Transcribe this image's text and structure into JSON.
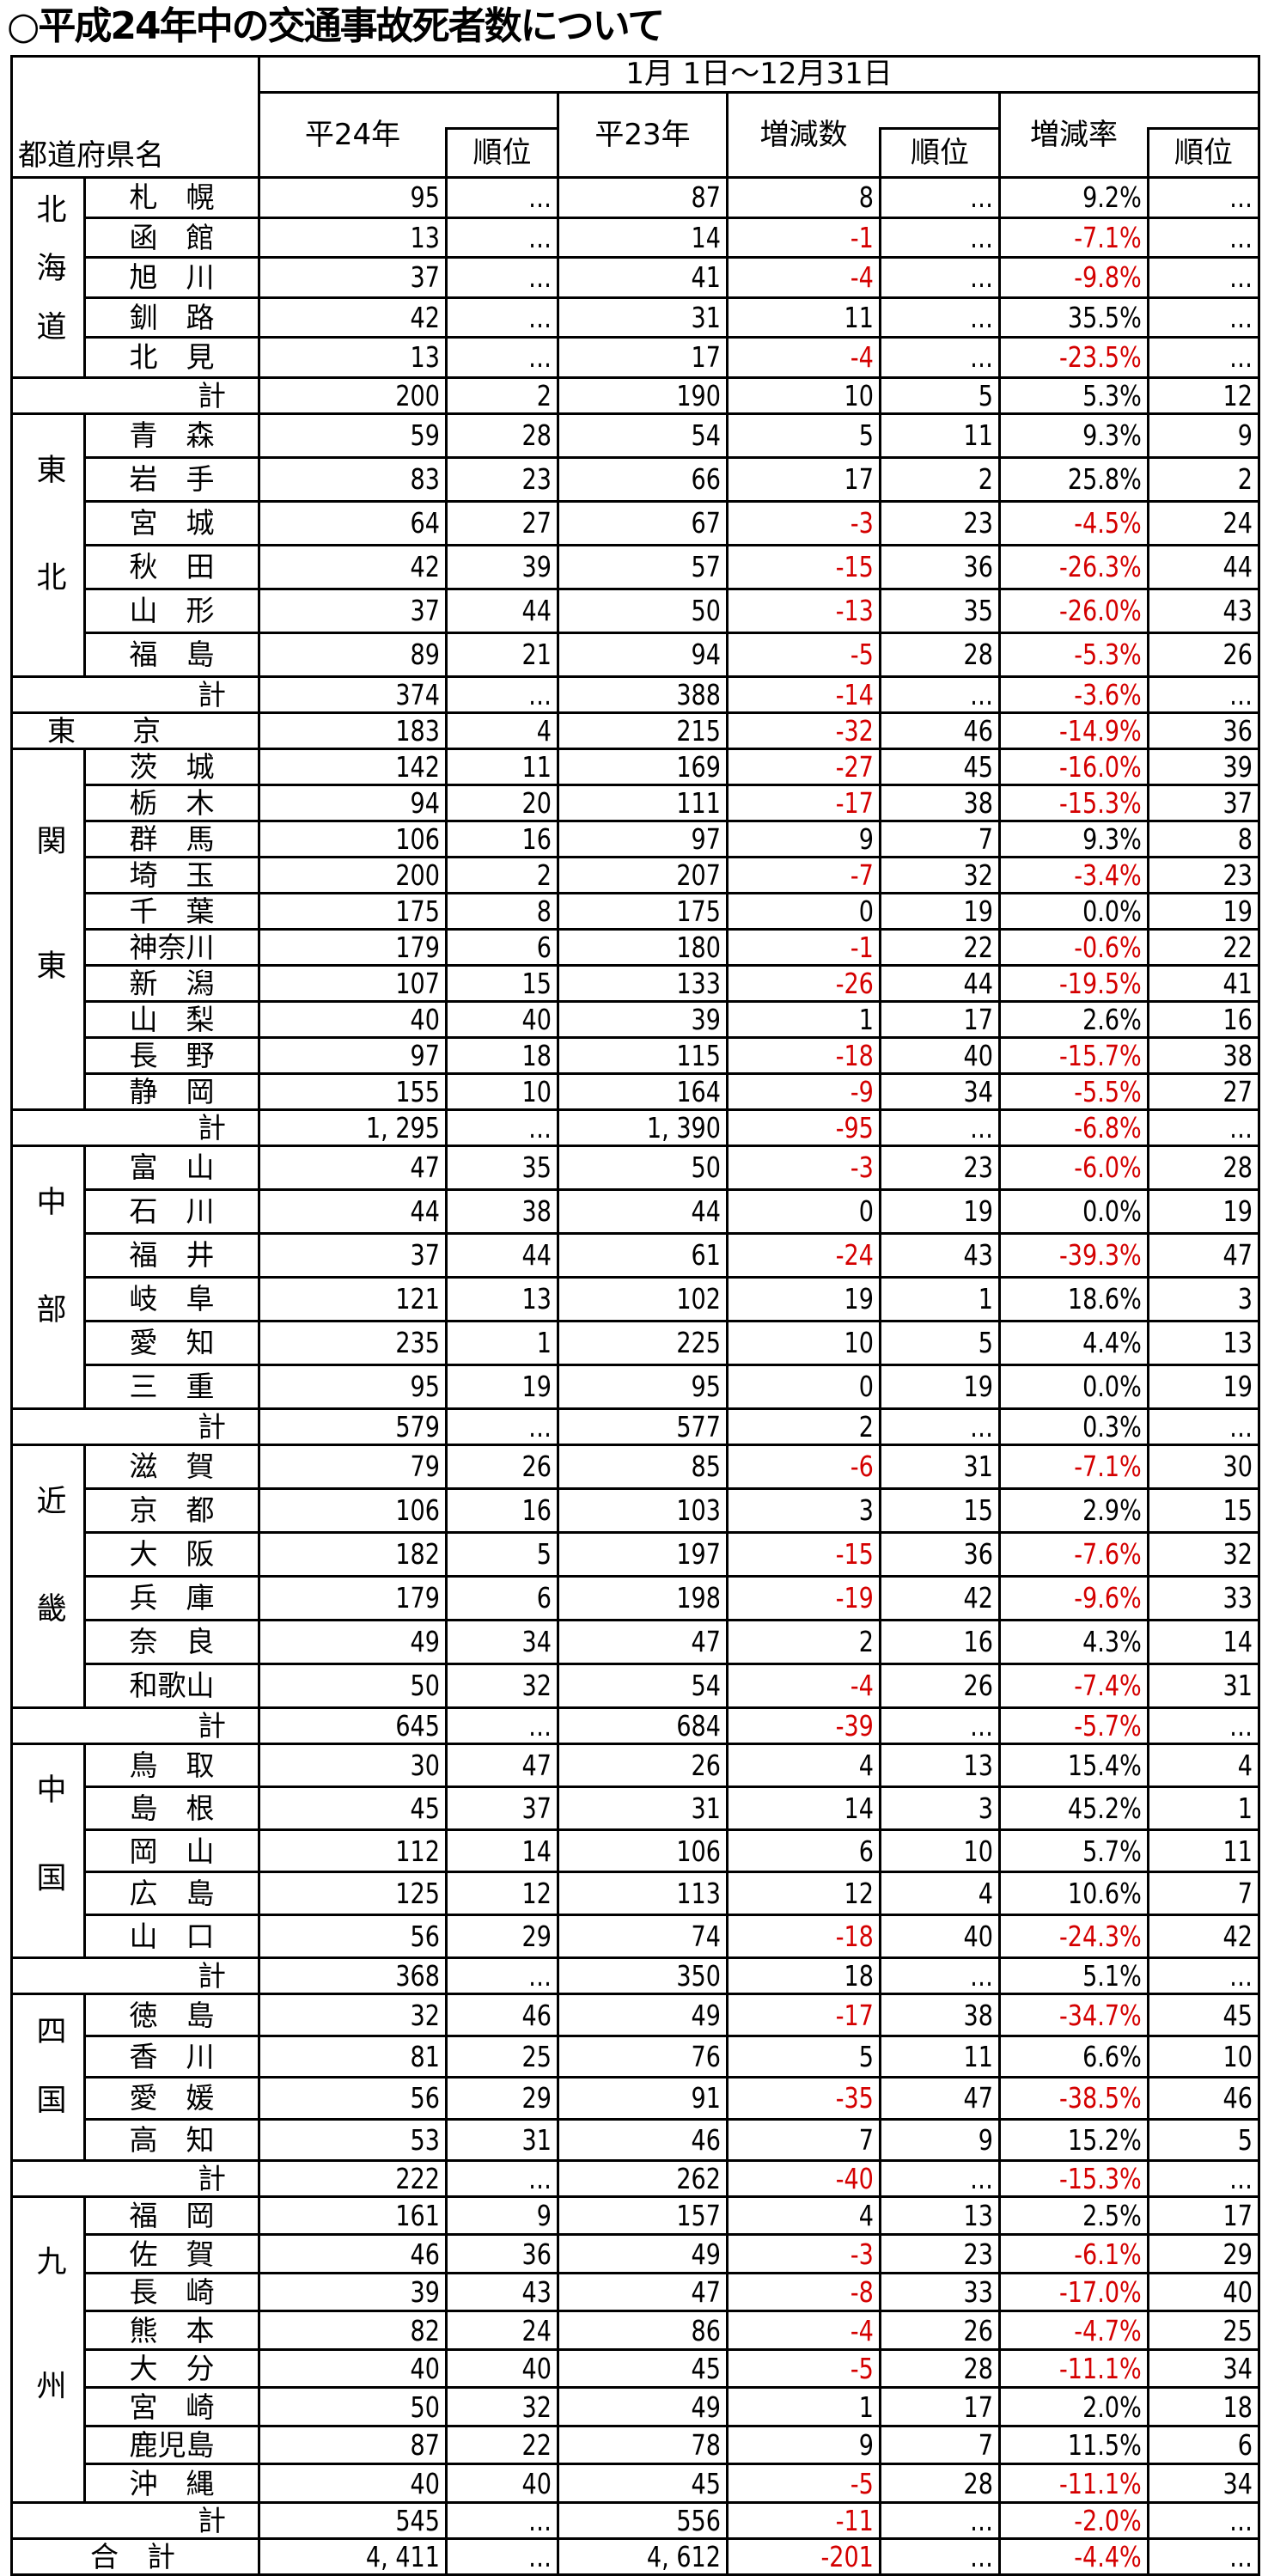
{
  "title": "○平成24年中の交通事故死者数について",
  "header": {
    "period": "1月 1日～12月31日",
    "prefecture": "都道府県名",
    "h24": "平24年",
    "h23": "平23年",
    "diff": "増減数",
    "rate": "増減率",
    "rank": "順位"
  },
  "colors": {
    "negative": "#d40000"
  },
  "total_label": "計",
  "regions": [
    {
      "name": "北海道",
      "rows": [
        [
          "札　幌",
          "95",
          "…",
          "87",
          "8",
          "…",
          "9.2%",
          "…"
        ],
        [
          "函　館",
          "13",
          "…",
          "14",
          "-1",
          "…",
          "-7.1%",
          "…"
        ],
        [
          "旭　川",
          "37",
          "…",
          "41",
          "-4",
          "…",
          "-9.8%",
          "…"
        ],
        [
          "釧　路",
          "42",
          "…",
          "31",
          "11",
          "…",
          "35.5%",
          "…"
        ],
        [
          "北　見",
          "13",
          "…",
          "17",
          "-4",
          "…",
          "-23.5%",
          "…"
        ]
      ],
      "total": [
        "計",
        "200",
        "2",
        "190",
        "10",
        "5",
        "5.3%",
        "12"
      ]
    },
    {
      "name": "東北",
      "rows": [
        [
          "青　森",
          "59",
          "28",
          "54",
          "5",
          "11",
          "9.3%",
          "9"
        ],
        [
          "岩　手",
          "83",
          "23",
          "66",
          "17",
          "2",
          "25.8%",
          "2"
        ],
        [
          "宮　城",
          "64",
          "27",
          "67",
          "-3",
          "23",
          "-4.5%",
          "24"
        ],
        [
          "秋　田",
          "42",
          "39",
          "57",
          "-15",
          "36",
          "-26.3%",
          "44"
        ],
        [
          "山　形",
          "37",
          "44",
          "50",
          "-13",
          "35",
          "-26.0%",
          "43"
        ],
        [
          "福　島",
          "89",
          "21",
          "94",
          "-5",
          "28",
          "-5.3%",
          "26"
        ]
      ],
      "total": [
        "計",
        "374",
        "…",
        "388",
        "-14",
        "…",
        "-3.6%",
        "…"
      ]
    },
    {
      "single": [
        "東　　京",
        "183",
        "4",
        "215",
        "-32",
        "46",
        "-14.9%",
        "36"
      ]
    },
    {
      "name": "関東",
      "rows": [
        [
          "茨　城",
          "142",
          "11",
          "169",
          "-27",
          "45",
          "-16.0%",
          "39"
        ],
        [
          "栃　木",
          "94",
          "20",
          "111",
          "-17",
          "38",
          "-15.3%",
          "37"
        ],
        [
          "群　馬",
          "106",
          "16",
          "97",
          "9",
          "7",
          "9.3%",
          "8"
        ],
        [
          "埼　玉",
          "200",
          "2",
          "207",
          "-7",
          "32",
          "-3.4%",
          "23"
        ],
        [
          "千　葉",
          "175",
          "8",
          "175",
          "0",
          "19",
          "0.0%",
          "19"
        ],
        [
          "神奈川",
          "179",
          "6",
          "180",
          "-1",
          "22",
          "-0.6%",
          "22"
        ],
        [
          "新　潟",
          "107",
          "15",
          "133",
          "-26",
          "44",
          "-19.5%",
          "41"
        ],
        [
          "山　梨",
          "40",
          "40",
          "39",
          "1",
          "17",
          "2.6%",
          "16"
        ],
        [
          "長　野",
          "97",
          "18",
          "115",
          "-18",
          "40",
          "-15.7%",
          "38"
        ],
        [
          "静　岡",
          "155",
          "10",
          "164",
          "-9",
          "34",
          "-5.5%",
          "27"
        ]
      ],
      "total": [
        "計",
        "1, 295",
        "…",
        "1, 390",
        "-95",
        "…",
        "-6.8%",
        "…"
      ]
    },
    {
      "name": "中部",
      "rows": [
        [
          "富　山",
          "47",
          "35",
          "50",
          "-3",
          "23",
          "-6.0%",
          "28"
        ],
        [
          "石　川",
          "44",
          "38",
          "44",
          "0",
          "19",
          "0.0%",
          "19"
        ],
        [
          "福　井",
          "37",
          "44",
          "61",
          "-24",
          "43",
          "-39.3%",
          "47"
        ],
        [
          "岐　阜",
          "121",
          "13",
          "102",
          "19",
          "1",
          "18.6%",
          "3"
        ],
        [
          "愛　知",
          "235",
          "1",
          "225",
          "10",
          "5",
          "4.4%",
          "13"
        ],
        [
          "三　重",
          "95",
          "19",
          "95",
          "0",
          "19",
          "0.0%",
          "19"
        ]
      ],
      "total": [
        "計",
        "579",
        "…",
        "577",
        "2",
        "…",
        "0.3%",
        "…"
      ]
    },
    {
      "name": "近畿",
      "rows": [
        [
          "滋　賀",
          "79",
          "26",
          "85",
          "-6",
          "31",
          "-7.1%",
          "30"
        ],
        [
          "京　都",
          "106",
          "16",
          "103",
          "3",
          "15",
          "2.9%",
          "15"
        ],
        [
          "大　阪",
          "182",
          "5",
          "197",
          "-15",
          "36",
          "-7.6%",
          "32"
        ],
        [
          "兵　庫",
          "179",
          "6",
          "198",
          "-19",
          "42",
          "-9.6%",
          "33"
        ],
        [
          "奈　良",
          "49",
          "34",
          "47",
          "2",
          "16",
          "4.3%",
          "14"
        ],
        [
          "和歌山",
          "50",
          "32",
          "54",
          "-4",
          "26",
          "-7.4%",
          "31"
        ]
      ],
      "total": [
        "計",
        "645",
        "…",
        "684",
        "-39",
        "…",
        "-5.7%",
        "…"
      ]
    },
    {
      "name": "中国",
      "rows": [
        [
          "鳥　取",
          "30",
          "47",
          "26",
          "4",
          "13",
          "15.4%",
          "4"
        ],
        [
          "島　根",
          "45",
          "37",
          "31",
          "14",
          "3",
          "45.2%",
          "1"
        ],
        [
          "岡　山",
          "112",
          "14",
          "106",
          "6",
          "10",
          "5.7%",
          "11"
        ],
        [
          "広　島",
          "125",
          "12",
          "113",
          "12",
          "4",
          "10.6%",
          "7"
        ],
        [
          "山　口",
          "56",
          "29",
          "74",
          "-18",
          "40",
          "-24.3%",
          "42"
        ]
      ],
      "total": [
        "計",
        "368",
        "…",
        "350",
        "18",
        "…",
        "5.1%",
        "…"
      ]
    },
    {
      "name": "四国",
      "rows": [
        [
          "徳　島",
          "32",
          "46",
          "49",
          "-17",
          "38",
          "-34.7%",
          "45"
        ],
        [
          "香　川",
          "81",
          "25",
          "76",
          "5",
          "11",
          "6.6%",
          "10"
        ],
        [
          "愛　媛",
          "56",
          "29",
          "91",
          "-35",
          "47",
          "-38.5%",
          "46"
        ],
        [
          "高　知",
          "53",
          "31",
          "46",
          "7",
          "9",
          "15.2%",
          "5"
        ]
      ],
      "total": [
        "計",
        "222",
        "…",
        "262",
        "-40",
        "…",
        "-15.3%",
        "…"
      ]
    },
    {
      "name": "九州",
      "rows": [
        [
          "福　岡",
          "161",
          "9",
          "157",
          "4",
          "13",
          "2.5%",
          "17"
        ],
        [
          "佐　賀",
          "46",
          "36",
          "49",
          "-3",
          "23",
          "-6.1%",
          "29"
        ],
        [
          "長　崎",
          "39",
          "43",
          "47",
          "-8",
          "33",
          "-17.0%",
          "40"
        ],
        [
          "熊　本",
          "82",
          "24",
          "86",
          "-4",
          "26",
          "-4.7%",
          "25"
        ],
        [
          "大　分",
          "40",
          "40",
          "45",
          "-5",
          "28",
          "-11.1%",
          "34"
        ],
        [
          "宮　崎",
          "50",
          "32",
          "49",
          "1",
          "17",
          "2.0%",
          "18"
        ],
        [
          "鹿児島",
          "87",
          "22",
          "78",
          "9",
          "7",
          "11.5%",
          "6"
        ],
        [
          "沖　縄",
          "40",
          "40",
          "45",
          "-5",
          "28",
          "-11.1%",
          "34"
        ]
      ],
      "total": [
        "計",
        "545",
        "…",
        "556",
        "-11",
        "…",
        "-2.0%",
        "…"
      ]
    }
  ],
  "grand_total": [
    "合　計",
    "4, 411",
    "…",
    "4, 612",
    "-201",
    "…",
    "-4.4%",
    "…"
  ]
}
